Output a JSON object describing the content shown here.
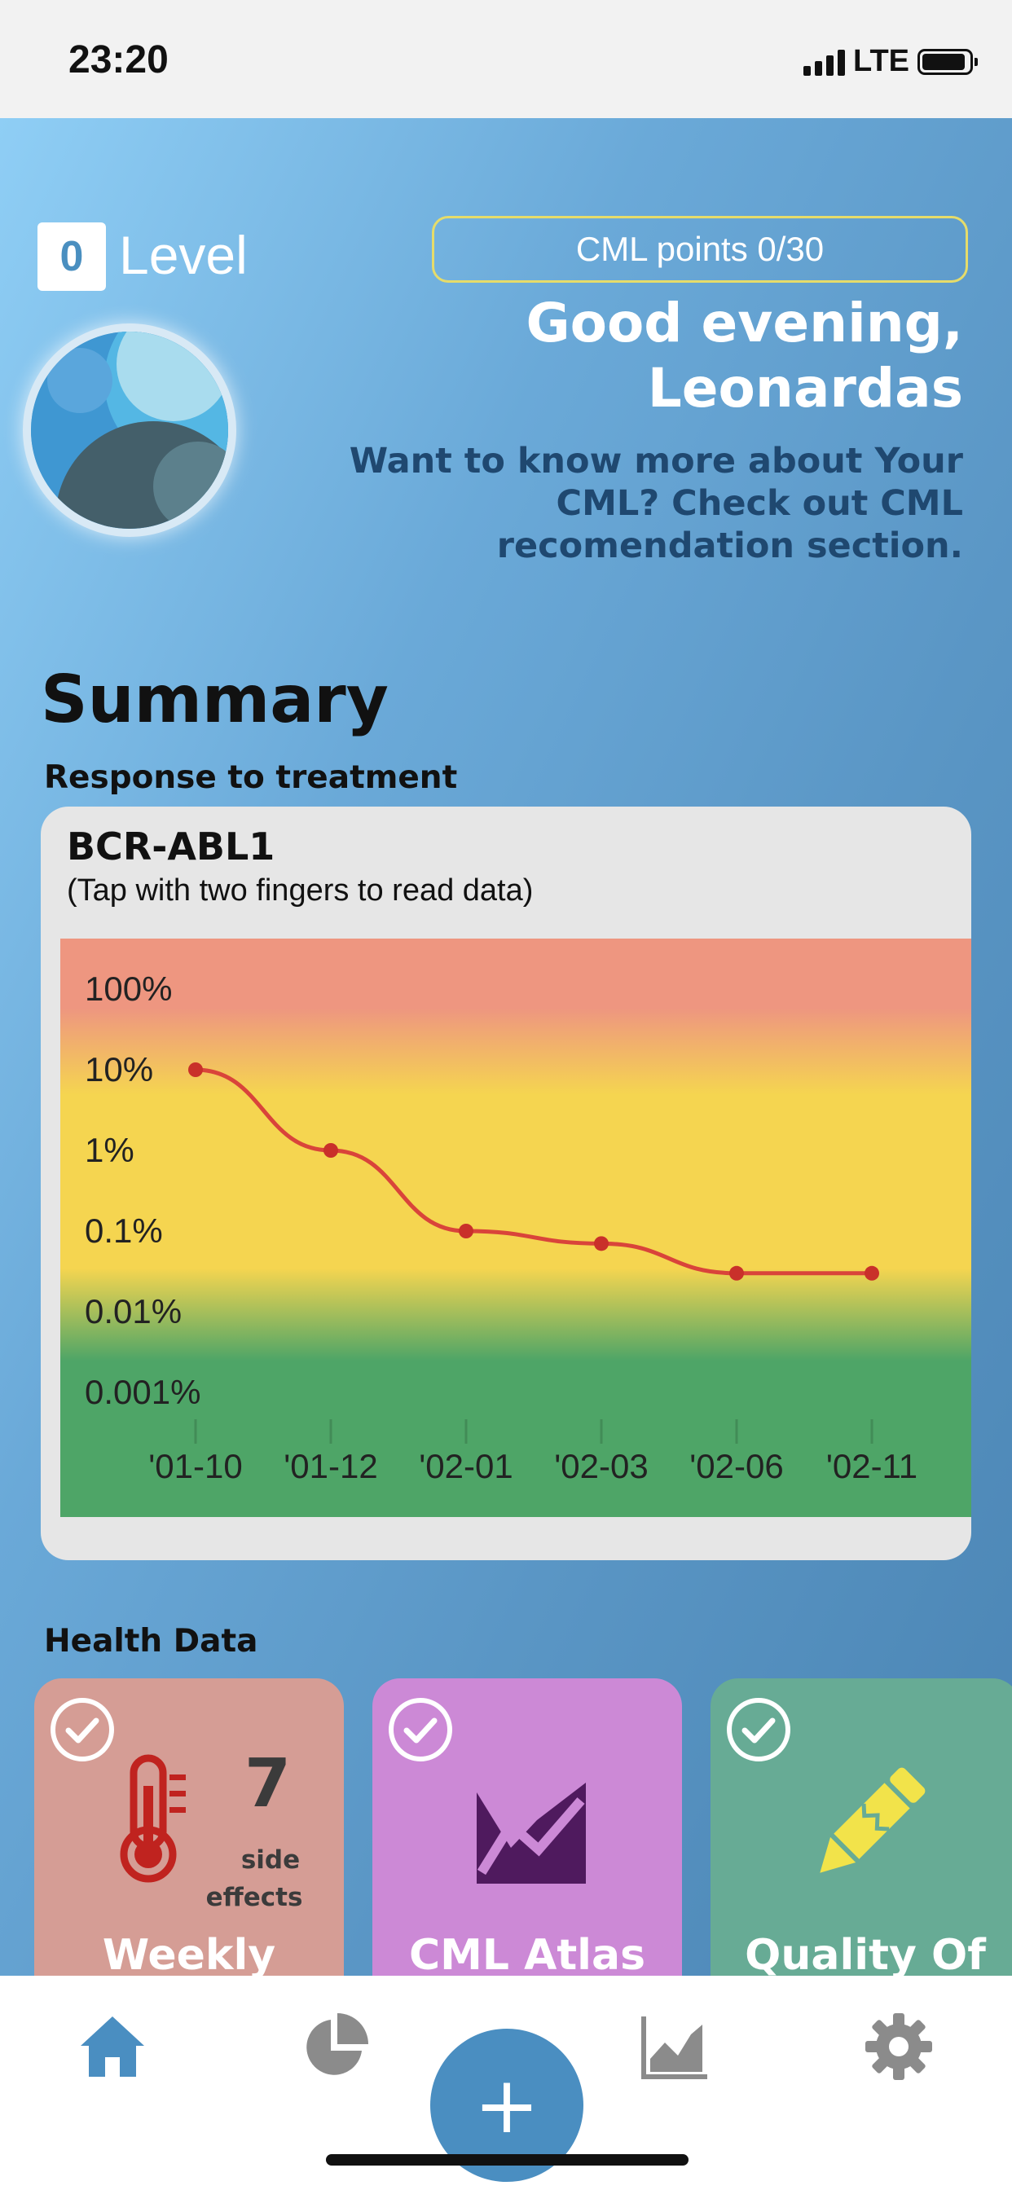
{
  "status": {
    "time": "23:20",
    "network": "LTE"
  },
  "header": {
    "level_number": "0",
    "level_label": "Level",
    "points": "CML points 0/30",
    "greeting_line1": "Good evening,",
    "greeting_line2": "Leonardas",
    "message_line1": "Want to know more about Your",
    "message_line2": "CML? Check out CML",
    "message_line3": "recomendation section."
  },
  "summary": {
    "title": "Summary",
    "response_title": "Response to treatment",
    "card_title": "BCR-ABL1",
    "card_subtitle": "(Tap with two fingers to read data)"
  },
  "chart_data": {
    "type": "line",
    "title": "BCR-ABL1",
    "xlabel": "",
    "ylabel": "",
    "scale": "log",
    "y_ticks": [
      "100%",
      "10%",
      "1%",
      "0.1%",
      "0.01%",
      "0.001%"
    ],
    "y_tick_values": [
      100,
      10,
      1,
      0.1,
      0.01,
      0.001
    ],
    "ylim": [
      0.001,
      100
    ],
    "x": [
      "'01-10",
      "'01-12",
      "'02-01",
      "'02-03",
      "'02-06",
      "'02-11"
    ],
    "values": [
      10,
      1,
      0.1,
      0.07,
      0.03,
      0.03
    ],
    "background_zones": {
      "high": "#ee9680",
      "mid": "#f5d550",
      "low": "#4ea567"
    },
    "line_color": "#d9443a",
    "grid": false
  },
  "health": {
    "title": "Health Data",
    "tiles": [
      {
        "label": "Weekly",
        "count": "7",
        "count_label_1": "side",
        "count_label_2": "effects",
        "color": "#d59d95",
        "icon": "thermometer-icon"
      },
      {
        "label": "CML Atlas",
        "color": "#cc89d6",
        "icon": "area-chart-icon"
      },
      {
        "label": "Quality Of",
        "color": "#67ab95",
        "icon": "pencil-icon"
      }
    ]
  },
  "nav": {
    "items": [
      "home-icon",
      "pie-chart-icon",
      "area-chart-icon",
      "gear-icon"
    ],
    "active": "home",
    "fab": "+"
  },
  "colors": {
    "accent": "#4a8ec1",
    "level_blue": "#4a8fc0"
  }
}
